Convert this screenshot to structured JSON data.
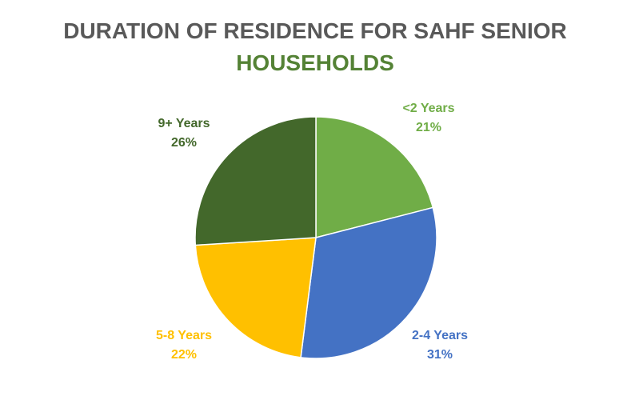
{
  "chart_data": {
    "type": "pie",
    "title_line1": "DURATION OF RESIDENCE FOR SAHF SENIOR",
    "title_line2": "HOUSEHOLDS",
    "title_colors": {
      "line1": "#595959",
      "line2": "#548235"
    },
    "start_angle_deg": 0,
    "direction": "clockwise",
    "slices": [
      {
        "label": "<2 Years",
        "value": 21,
        "pct_label": "21%",
        "color": "#70AD47"
      },
      {
        "label": "2-4 Years",
        "value": 31,
        "pct_label": "31%",
        "color": "#4472C4"
      },
      {
        "label": "5-8 Years",
        "value": 22,
        "pct_label": "22%",
        "color": "#FFC000"
      },
      {
        "label": "9+ Years",
        "value": 26,
        "pct_label": "26%",
        "color": "#43682B"
      }
    ]
  }
}
